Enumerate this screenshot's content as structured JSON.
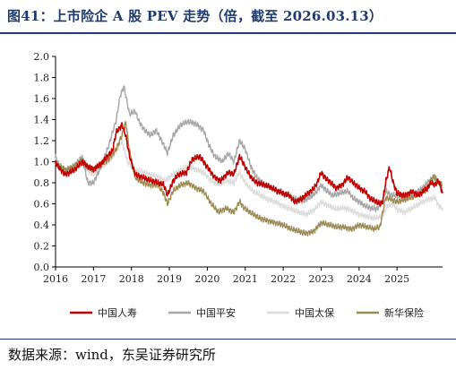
{
  "title": "图41：上市险企 A 股 PEV 走势（倍，截至 2026.03.13）",
  "source": "数据来源：wind，东吴证券研究所",
  "chart_data": {
    "type": "line",
    "title": "图41：上市险企 A 股 PEV 走势（倍，截至 2026.03.13）",
    "xlabel": "",
    "ylabel": "",
    "xlim": [
      2016.0,
      2026.2
    ],
    "ylim": [
      0.0,
      2.0
    ],
    "yticks": [
      "0.0",
      "0.2",
      "0.4",
      "0.6",
      "0.8",
      "1.0",
      "1.2",
      "1.4",
      "1.6",
      "1.8",
      "2.0"
    ],
    "xticks": [
      "2016",
      "2017",
      "2018",
      "2019",
      "2020",
      "2021",
      "2022",
      "2023",
      "2024",
      "2025"
    ],
    "grid": false,
    "legend_position": "bottom",
    "series": [
      {
        "name": "中国人寿",
        "color": "#c00000",
        "x": [
          2016.0,
          2016.08,
          2016.25,
          2016.5,
          2016.7,
          2016.85,
          2017.0,
          2017.2,
          2017.35,
          2017.5,
          2017.6,
          2017.75,
          2017.85,
          2017.95,
          2018.1,
          2018.3,
          2018.5,
          2018.7,
          2018.85,
          2018.95,
          2019.1,
          2019.25,
          2019.45,
          2019.6,
          2019.8,
          2020.0,
          2020.2,
          2020.35,
          2020.55,
          2020.7,
          2020.85,
          2021.0,
          2021.15,
          2021.3,
          2021.5,
          2021.7,
          2021.85,
          2022.0,
          2022.15,
          2022.3,
          2022.5,
          2022.65,
          2022.8,
          2022.9,
          2023.0,
          2023.1,
          2023.25,
          2023.4,
          2023.55,
          2023.7,
          2023.85,
          2024.0,
          2024.15,
          2024.3,
          2024.45,
          2024.55,
          2024.62,
          2024.7,
          2024.8,
          2024.9,
          2025.0,
          2025.2,
          2025.4,
          2025.55,
          2025.7,
          2025.8,
          2025.9,
          2026.0,
          2026.1,
          2026.2
        ],
        "values": [
          1.0,
          0.95,
          0.88,
          0.92,
          1.0,
          0.95,
          0.93,
          0.98,
          1.05,
          1.1,
          1.28,
          1.35,
          1.25,
          1.05,
          0.88,
          0.85,
          0.82,
          0.8,
          0.78,
          0.68,
          0.82,
          0.88,
          0.9,
          1.02,
          1.05,
          0.95,
          0.85,
          0.82,
          0.9,
          0.88,
          1.05,
          0.95,
          0.85,
          0.8,
          0.78,
          0.75,
          0.72,
          0.7,
          0.68,
          0.62,
          0.65,
          0.7,
          0.74,
          0.8,
          0.9,
          0.85,
          0.8,
          0.75,
          0.78,
          0.85,
          0.8,
          0.75,
          0.72,
          0.65,
          0.62,
          0.6,
          0.62,
          0.8,
          0.95,
          0.8,
          0.7,
          0.68,
          0.72,
          0.68,
          0.72,
          0.75,
          0.8,
          0.78,
          0.82,
          0.7
        ]
      },
      {
        "name": "中国平安",
        "color": "#a6a6a6",
        "x": [
          2016.0,
          2016.08,
          2016.25,
          2016.5,
          2016.7,
          2016.85,
          2017.0,
          2017.2,
          2017.4,
          2017.6,
          2017.7,
          2017.8,
          2017.95,
          2018.1,
          2018.2,
          2018.35,
          2018.5,
          2018.65,
          2018.8,
          2018.95,
          2019.1,
          2019.3,
          2019.5,
          2019.7,
          2019.9,
          2020.05,
          2020.2,
          2020.4,
          2020.55,
          2020.7,
          2020.85,
          2021.0,
          2021.15,
          2021.3,
          2021.5,
          2021.7,
          2021.85,
          2022.0,
          2022.15,
          2022.3,
          2022.5,
          2022.7,
          2022.85,
          2023.0,
          2023.15,
          2023.3,
          2023.5,
          2023.7,
          2023.85,
          2024.0,
          2024.15,
          2024.3,
          2024.45,
          2024.6,
          2024.7,
          2024.85,
          2025.0,
          2025.2,
          2025.4,
          2025.55,
          2025.7,
          2025.85,
          2026.0,
          2026.1,
          2026.2
        ],
        "values": [
          1.05,
          0.98,
          0.92,
          0.96,
          1.05,
          0.8,
          0.8,
          0.95,
          1.15,
          1.4,
          1.62,
          1.72,
          1.45,
          1.48,
          1.38,
          1.3,
          1.25,
          1.3,
          1.2,
          1.08,
          1.25,
          1.35,
          1.38,
          1.36,
          1.3,
          1.15,
          1.05,
          1.0,
          1.08,
          1.0,
          1.2,
          1.12,
          0.95,
          0.85,
          0.78,
          0.75,
          0.72,
          0.7,
          0.68,
          0.65,
          0.62,
          0.66,
          0.7,
          0.78,
          0.72,
          0.68,
          0.7,
          0.72,
          0.65,
          0.62,
          0.58,
          0.56,
          0.55,
          0.6,
          0.72,
          0.68,
          0.68,
          0.66,
          0.7,
          0.72,
          0.76,
          0.82,
          0.86,
          0.8,
          0.74
        ]
      },
      {
        "name": "中国太保",
        "color": "#dcdcdc",
        "x": [
          2016.0,
          2016.1,
          2016.3,
          2016.5,
          2016.7,
          2016.9,
          2017.0,
          2017.2,
          2017.4,
          2017.6,
          2017.75,
          2017.9,
          2018.1,
          2018.3,
          2018.5,
          2018.7,
          2018.9,
          2019.1,
          2019.3,
          2019.5,
          2019.7,
          2019.9,
          2020.1,
          2020.3,
          2020.5,
          2020.7,
          2020.85,
          2021.0,
          2021.2,
          2021.4,
          2021.6,
          2021.8,
          2022.0,
          2022.2,
          2022.4,
          2022.6,
          2022.8,
          2023.0,
          2023.2,
          2023.4,
          2023.6,
          2023.8,
          2024.0,
          2024.2,
          2024.4,
          2024.6,
          2024.75,
          2024.9,
          2025.0,
          2025.2,
          2025.4,
          2025.6,
          2025.8,
          2026.0,
          2026.1,
          2026.2
        ],
        "values": [
          1.02,
          0.95,
          0.9,
          0.93,
          0.98,
          0.9,
          0.88,
          0.95,
          1.0,
          1.1,
          1.2,
          1.0,
          0.92,
          0.9,
          0.88,
          0.86,
          0.82,
          0.88,
          0.92,
          0.95,
          0.93,
          0.9,
          0.82,
          0.78,
          0.82,
          0.8,
          0.9,
          0.8,
          0.72,
          0.68,
          0.64,
          0.62,
          0.58,
          0.55,
          0.52,
          0.5,
          0.54,
          0.62,
          0.58,
          0.55,
          0.56,
          0.54,
          0.5,
          0.48,
          0.46,
          0.48,
          0.58,
          0.6,
          0.55,
          0.52,
          0.56,
          0.6,
          0.64,
          0.66,
          0.58,
          0.56
        ]
      },
      {
        "name": "新华保险",
        "color": "#9b8a52",
        "x": [
          2016.0,
          2016.1,
          2016.3,
          2016.5,
          2016.7,
          2016.85,
          2017.0,
          2017.2,
          2017.4,
          2017.6,
          2017.75,
          2017.85,
          2017.95,
          2018.1,
          2018.3,
          2018.5,
          2018.7,
          2018.85,
          2018.95,
          2019.1,
          2019.3,
          2019.5,
          2019.7,
          2019.9,
          2020.1,
          2020.3,
          2020.5,
          2020.7,
          2020.85,
          2021.0,
          2021.2,
          2021.4,
          2021.6,
          2021.8,
          2022.0,
          2022.2,
          2022.4,
          2022.6,
          2022.8,
          2023.0,
          2023.2,
          2023.4,
          2023.6,
          2023.8,
          2024.0,
          2024.2,
          2024.4,
          2024.55,
          2024.7,
          2024.85,
          2025.0,
          2025.2,
          2025.4,
          2025.6,
          2025.8,
          2025.95,
          2026.05,
          2026.2
        ],
        "values": [
          0.98,
          0.95,
          0.92,
          0.96,
          1.02,
          0.95,
          0.92,
          0.98,
          1.02,
          1.12,
          1.25,
          1.38,
          1.1,
          0.85,
          0.8,
          0.78,
          0.78,
          0.7,
          0.6,
          0.72,
          0.78,
          0.8,
          0.75,
          0.72,
          0.6,
          0.52,
          0.56,
          0.52,
          0.62,
          0.55,
          0.5,
          0.46,
          0.44,
          0.42,
          0.4,
          0.36,
          0.34,
          0.32,
          0.34,
          0.42,
          0.4,
          0.38,
          0.38,
          0.36,
          0.4,
          0.38,
          0.36,
          0.38,
          0.66,
          0.64,
          0.62,
          0.64,
          0.66,
          0.7,
          0.74,
          0.86,
          0.82,
          0.78
        ]
      }
    ]
  }
}
